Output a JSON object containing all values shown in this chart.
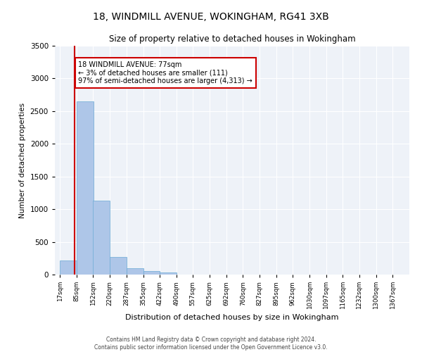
{
  "title_line1": "18, WINDMILL AVENUE, WOKINGHAM, RG41 3XB",
  "title_line2": "Size of property relative to detached houses in Wokingham",
  "xlabel": "Distribution of detached houses by size in Wokingham",
  "ylabel": "Number of detached properties",
  "footer_line1": "Contains HM Land Registry data © Crown copyright and database right 2024.",
  "footer_line2": "Contains public sector information licensed under the Open Government Licence v3.0.",
  "annotation_line1": "18 WINDMILL AVENUE: 77sqm",
  "annotation_line2": "← 3% of detached houses are smaller (111)",
  "annotation_line3": "97% of semi-detached houses are larger (4,313) →",
  "bar_color": "#aec6e8",
  "bar_edge_color": "#6aaad4",
  "property_line_color": "#cc0000",
  "annotation_box_color": "#cc0000",
  "background_color": "#eef2f8",
  "bins": [
    17,
    85,
    152,
    220,
    287,
    355,
    422,
    490,
    557,
    625,
    692,
    760,
    827,
    895,
    962,
    1030,
    1097,
    1165,
    1232,
    1300,
    1367
  ],
  "values": [
    220,
    2650,
    1130,
    270,
    100,
    55,
    35,
    5,
    2,
    1,
    1,
    0,
    0,
    0,
    0,
    0,
    0,
    0,
    0,
    0
  ],
  "property_size": 77,
  "ylim": [
    0,
    3500
  ],
  "yticks": [
    0,
    500,
    1000,
    1500,
    2000,
    2500,
    3000,
    3500
  ],
  "figsize": [
    6.0,
    5.0
  ],
  "dpi": 100
}
